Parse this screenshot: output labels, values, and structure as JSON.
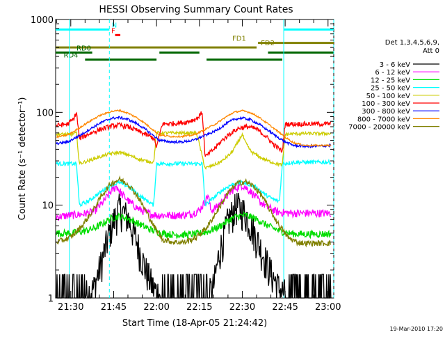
{
  "chart_data": {
    "type": "line",
    "title": "HESSI Observing Summary Count Rates",
    "xlabel": "Start Time (18-Apr-05 21:24:42)",
    "ylabel": "Count Rate (s⁻¹ detector⁻¹)",
    "yscale": "log",
    "ylim": [
      1,
      1000
    ],
    "xlim": [
      "21:24:42",
      "23:02:00"
    ],
    "x_tick_labels": [
      "21:30",
      "21:45",
      "22:00",
      "22:15",
      "22:30",
      "22:45",
      "23:00"
    ],
    "y_tick_labels": [
      "1",
      "10",
      "100",
      "1000"
    ],
    "y_tick_values": [
      1,
      10,
      100,
      1000
    ],
    "grid": false,
    "legend_position": "right",
    "legend_header": [
      "Det 1,3,4,5,6,9,",
      "Att 0"
    ],
    "timestamp": "19-Mar-2010 17:20",
    "series": [
      {
        "name": "3 - 6 keV",
        "color": "#000000",
        "x": [
          "21:25",
          "21:30",
          "21:34",
          "21:38",
          "21:41",
          "21:44",
          "21:47",
          "21:50",
          "21:53",
          "21:56",
          "21:59",
          "22:02",
          "22:06",
          "22:10",
          "22:14",
          "22:18",
          "22:20",
          "22:22",
          "22:25",
          "22:28",
          "22:31",
          "22:34",
          "22:37",
          "22:40",
          "22:43",
          "22:46",
          "22:49",
          "22:52",
          "22:55",
          "22:58",
          "23:01"
        ],
        "y": [
          1,
          1,
          1,
          1.2,
          2.5,
          5.5,
          9,
          7,
          4,
          2,
          1.2,
          1,
          1,
          1,
          1,
          1,
          1.3,
          3,
          6.5,
          9.5,
          8,
          5,
          3,
          1.8,
          1.2,
          1,
          1,
          1,
          1,
          1,
          1
        ]
      },
      {
        "name": "6 - 12 keV",
        "color": "#ff00ff",
        "x": [
          "21:25",
          "21:30",
          "21:34",
          "21:38",
          "21:41",
          "21:44",
          "21:46",
          "21:48",
          "21:51",
          "21:54",
          "21:57",
          "22:00",
          "22:04",
          "22:08",
          "22:12",
          "22:15",
          "22:17",
          "22:18",
          "22:19",
          "22:21",
          "22:24",
          "22:27",
          "22:30",
          "22:33",
          "22:36",
          "22:39",
          "22:42",
          "22:45",
          "22:48",
          "22:52",
          "22:56",
          "23:01"
        ],
        "y": [
          7.5,
          7.8,
          8,
          8.5,
          10.5,
          14,
          16,
          13,
          10.5,
          9,
          8.2,
          7.8,
          7.8,
          7.8,
          8,
          8.8,
          11,
          13,
          8.8,
          9.5,
          12,
          15,
          16.5,
          14,
          11,
          9.5,
          8.5,
          8.3,
          8.2,
          8.2,
          8.2,
          8.2
        ]
      },
      {
        "name": "12 - 25 keV",
        "color": "#00dd00",
        "x": [
          "21:25",
          "21:30",
          "21:34",
          "21:38",
          "21:41",
          "21:44",
          "21:47",
          "21:50",
          "21:53",
          "21:56",
          "21:59",
          "22:02",
          "22:06",
          "22:10",
          "22:14",
          "22:18",
          "22:22",
          "22:25",
          "22:28",
          "22:31",
          "22:34",
          "22:37",
          "22:40",
          "22:43",
          "22:46",
          "22:49",
          "22:52",
          "22:55",
          "22:58",
          "23:01"
        ],
        "y": [
          5,
          5,
          5.2,
          5.6,
          6.3,
          7.2,
          7.6,
          7.2,
          6.5,
          5.8,
          5.3,
          5,
          4.8,
          4.8,
          4.9,
          5.2,
          5.9,
          6.8,
          7.6,
          7.8,
          7.3,
          6.5,
          5.8,
          5.3,
          5,
          4.9,
          4.9,
          4.9,
          4.9,
          4.9
        ]
      },
      {
        "name": "25 - 50 keV",
        "color": "#00ffff",
        "x": [
          "21:25",
          "21:30",
          "21:32",
          "21:33",
          "21:36",
          "21:40",
          "21:44",
          "21:47",
          "21:50",
          "21:53",
          "21:56",
          "21:58",
          "21:59",
          "22:00",
          "22:05",
          "22:10",
          "22:14",
          "22:16",
          "22:17",
          "22:20",
          "22:23",
          "22:26",
          "22:29",
          "22:32",
          "22:35",
          "22:38",
          "22:41",
          "22:43",
          "22:44",
          "22:48",
          "22:52",
          "22:56",
          "23:01"
        ],
        "y": [
          28,
          28,
          28,
          10,
          11,
          13.5,
          16.5,
          17.5,
          16,
          13.5,
          11.5,
          10.5,
          10,
          28,
          28,
          28,
          28,
          28,
          10,
          12,
          14.5,
          16.5,
          17.5,
          17,
          15.5,
          13,
          11.5,
          11,
          28,
          29,
          29,
          29,
          29
        ]
      },
      {
        "name": "50 - 100 keV",
        "color": "#cccc00",
        "x": [
          "21:25",
          "21:30",
          "21:32",
          "21:33",
          "21:36",
          "21:40",
          "21:44",
          "21:47",
          "21:50",
          "21:53",
          "21:56",
          "21:59",
          "22:00",
          "22:05",
          "22:10",
          "22:14",
          "22:17",
          "22:20",
          "22:23",
          "22:26",
          "22:28",
          "22:30",
          "22:31",
          "22:33",
          "22:36",
          "22:39",
          "22:42",
          "22:44",
          "22:45",
          "22:49",
          "22:53",
          "22:57",
          "23:01"
        ],
        "y": [
          58,
          58,
          60,
          28,
          30,
          33,
          36,
          37,
          35,
          32,
          30,
          29,
          60,
          60,
          60,
          60,
          25,
          27,
          30,
          36,
          45,
          58,
          48,
          38,
          33,
          30,
          28,
          27,
          58,
          59,
          59,
          59,
          59
        ]
      },
      {
        "name": "100 - 300 keV",
        "color": "#ff0000",
        "x": [
          "21:25",
          "21:29",
          "21:31",
          "21:32",
          "21:33",
          "21:36",
          "21:40",
          "21:44",
          "21:47",
          "21:50",
          "21:53",
          "21:56",
          "21:59",
          "22:00",
          "22:02",
          "22:06",
          "22:10",
          "22:14",
          "22:16",
          "22:17",
          "22:20",
          "22:23",
          "22:26",
          "22:29",
          "22:32",
          "22:35",
          "22:38",
          "22:41",
          "22:44",
          "22:45",
          "22:49",
          "22:53",
          "22:57",
          "23:01"
        ],
        "y": [
          72,
          75,
          85,
          100,
          52,
          58,
          65,
          71,
          73,
          70,
          64,
          58,
          53,
          42,
          75,
          76,
          78,
          85,
          100,
          33,
          40,
          50,
          60,
          68,
          70,
          66,
          56,
          45,
          38,
          75,
          75,
          75,
          75,
          75
        ]
      },
      {
        "name": "300 - 800 keV",
        "color": "#0000ff",
        "x": [
          "21:25",
          "21:29",
          "21:31",
          "21:33",
          "21:36",
          "21:40",
          "21:44",
          "21:47",
          "21:50",
          "21:53",
          "21:56",
          "21:59",
          "22:01",
          "22:05",
          "22:09",
          "22:13",
          "22:16",
          "22:18",
          "22:21",
          "22:24",
          "22:27",
          "22:30",
          "22:33",
          "22:36",
          "22:39",
          "22:42",
          "22:45",
          "22:48",
          "22:52",
          "22:56",
          "23:01"
        ],
        "y": [
          46,
          48,
          52,
          56,
          64,
          76,
          86,
          88,
          84,
          76,
          66,
          56,
          50,
          48,
          48,
          50,
          55,
          58,
          64,
          74,
          84,
          87,
          83,
          74,
          64,
          55,
          48,
          44,
          43,
          43,
          44
        ]
      },
      {
        "name": "800 - 7000 keV",
        "color": "#ff8800",
        "x": [
          "21:25",
          "21:29",
          "21:31",
          "21:33",
          "21:36",
          "21:40",
          "21:44",
          "21:47",
          "21:50",
          "21:53",
          "21:56",
          "21:59",
          "22:01",
          "22:05",
          "22:09",
          "22:13",
          "22:16",
          "22:18",
          "22:21",
          "22:24",
          "22:27",
          "22:30",
          "22:33",
          "22:36",
          "22:39",
          "22:42",
          "22:45",
          "22:48",
          "22:52",
          "22:56",
          "23:01"
        ],
        "y": [
          54,
          57,
          62,
          68,
          78,
          92,
          102,
          105,
          98,
          88,
          76,
          64,
          57,
          55,
          55,
          57,
          63,
          68,
          76,
          88,
          100,
          104,
          99,
          88,
          75,
          64,
          54,
          47,
          44,
          44,
          44
        ]
      },
      {
        "name": "7000 - 20000 keV",
        "color": "#808000",
        "x": [
          "21:25",
          "21:30",
          "21:34",
          "21:38",
          "21:41",
          "21:44",
          "21:47",
          "21:50",
          "21:53",
          "21:56",
          "21:59",
          "22:02",
          "22:06",
          "22:10",
          "22:14",
          "22:18",
          "22:22",
          "22:25",
          "22:28",
          "22:31",
          "22:34",
          "22:37",
          "22:40",
          "22:43",
          "22:46",
          "22:49",
          "22:52",
          "22:55",
          "22:58",
          "23:01"
        ],
        "y": [
          4,
          4.5,
          6,
          9,
          13,
          17,
          19,
          17,
          13,
          9,
          6,
          4.3,
          4,
          4,
          4.5,
          6,
          9.5,
          13.5,
          17,
          18,
          16,
          12.5,
          8.5,
          6,
          4.5,
          4,
          3.9,
          3.9,
          3.9,
          3.9
        ]
      }
    ],
    "flag_segments": [
      {
        "label": "N",
        "color": "#00ffff",
        "level": 780,
        "segments": [
          [
            "21:24:42",
            "21:43:30"
          ],
          [
            "22:44:30",
            "23:02:00"
          ]
        ],
        "label_at": "21:44:20"
      },
      {
        "label": "F",
        "color": "#ff0000",
        "level": 680,
        "segments": [
          [
            "21:45:30",
            "21:47:20"
          ]
        ],
        "label_at": "21:44:10"
      },
      {
        "label": "FD1",
        "color": "#808000",
        "level": 560,
        "segments": [
          [
            "22:35:30",
            "23:02:00"
          ]
        ],
        "label_at": "22:26:30"
      },
      {
        "label": "FD2",
        "color": "#808000",
        "level": 500,
        "segments": [
          [
            "21:24:42",
            "22:35:00"
          ]
        ],
        "label_at": "22:36:30"
      },
      {
        "label": "RD0",
        "color": "#006600",
        "level": 440,
        "segments": [
          [
            "21:24:42",
            "21:37:30"
          ],
          [
            "22:01:00",
            "22:15:00"
          ],
          [
            "22:39:00",
            "23:02:00"
          ]
        ],
        "label_at": "21:32:00"
      },
      {
        "label": "RD4",
        "color": "#006600",
        "level": 370,
        "segments": [
          [
            "21:35:00",
            "22:00:00"
          ],
          [
            "22:17:30",
            "22:44:00"
          ]
        ],
        "label_at": "21:27:30"
      }
    ],
    "vertical_markers": [
      {
        "time": "21:29:30",
        "style": "solid",
        "color": "#00ffff"
      },
      {
        "time": "21:43:30",
        "style": "dashed",
        "color": "#00ffff"
      },
      {
        "time": "22:44:30",
        "style": "solid",
        "color": "#00ffff"
      },
      {
        "time": "23:02:00",
        "style": "dashed",
        "color": "#00ffff"
      }
    ]
  }
}
